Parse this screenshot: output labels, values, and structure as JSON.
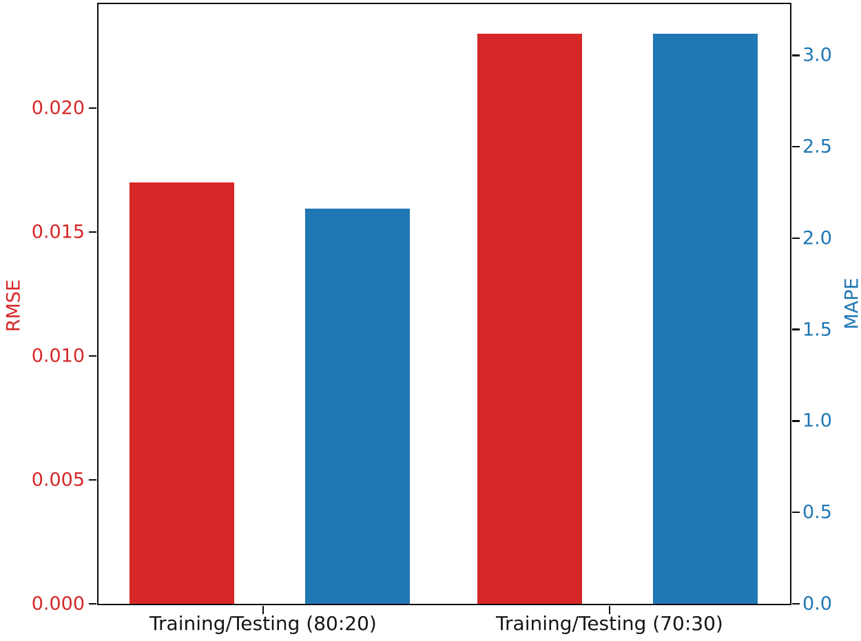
{
  "chart_data": {
    "type": "bar",
    "title": "",
    "categories": [
      "Training/Testing (80:20)",
      "Training/Testing (70:30)"
    ],
    "series": [
      {
        "name": "RMSE",
        "axis": "left",
        "color": "#d62728",
        "values": [
          0.017,
          0.023
        ]
      },
      {
        "name": "MAPE",
        "axis": "right",
        "color": "#1f77b4",
        "values": [
          2.16,
          3.12
        ]
      }
    ],
    "left_axis": {
      "label": "RMSE",
      "color": "#d62728",
      "tick_labels": [
        "0.000",
        "0.005",
        "0.010",
        "0.015",
        "0.020"
      ],
      "tick_values": [
        0,
        0.005,
        0.01,
        0.015,
        0.02
      ],
      "ylim": [
        0,
        0.0242
      ]
    },
    "right_axis": {
      "label": "MAPE",
      "color": "#1f77b4",
      "tick_labels": [
        "0.0",
        "0.5",
        "1.0",
        "1.5",
        "2.0",
        "2.5",
        "3.0"
      ],
      "tick_values": [
        0,
        0.5,
        1.0,
        1.5,
        2.0,
        2.5,
        3.0
      ],
      "ylim": [
        0,
        3.28
      ]
    },
    "legend": "none",
    "grid": false,
    "spine_color": "#0c0c0c"
  }
}
